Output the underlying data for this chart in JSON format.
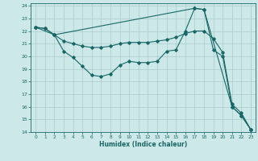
{
  "xlabel": "Humidex (Indice chaleur)",
  "bg_color": "#cce8e8",
  "grid_color": "#aacccc",
  "line_color": "#1a6666",
  "xlim": [
    -0.5,
    23.5
  ],
  "ylim": [
    14,
    24.2
  ],
  "yticks": [
    14,
    15,
    16,
    17,
    18,
    19,
    20,
    21,
    22,
    23,
    24
  ],
  "xticks": [
    0,
    1,
    2,
    3,
    4,
    5,
    6,
    7,
    8,
    9,
    10,
    11,
    12,
    13,
    14,
    15,
    16,
    17,
    18,
    19,
    20,
    21,
    22,
    23
  ],
  "line1_x": [
    0,
    1,
    2,
    3,
    4,
    5,
    6,
    7,
    8,
    9,
    10,
    11,
    12,
    13,
    14,
    15,
    16,
    17,
    18,
    19,
    20,
    21,
    22,
    23
  ],
  "line1_y": [
    22.3,
    22.2,
    21.7,
    20.4,
    19.9,
    19.2,
    18.5,
    18.4,
    18.6,
    19.3,
    19.6,
    19.5,
    19.5,
    19.6,
    20.4,
    20.5,
    22.0,
    23.8,
    23.7,
    20.5,
    20.0,
    16.0,
    15.3,
    14.2
  ],
  "line2_x": [
    0,
    2,
    3,
    4,
    5,
    6,
    7,
    8,
    9,
    10,
    11,
    12,
    13,
    14,
    15,
    16,
    17,
    18,
    19,
    20,
    21,
    22,
    23
  ],
  "line2_y": [
    22.3,
    21.7,
    21.2,
    21.0,
    20.8,
    20.7,
    20.7,
    20.8,
    21.0,
    21.1,
    21.1,
    21.1,
    21.2,
    21.3,
    21.5,
    21.8,
    22.0,
    22.0,
    21.4,
    20.3,
    16.2,
    15.5,
    14.2
  ],
  "line3_x": [
    0,
    1,
    2,
    17,
    18,
    21,
    22,
    23
  ],
  "line3_y": [
    22.3,
    22.2,
    21.7,
    23.8,
    23.7,
    16.0,
    15.3,
    14.2
  ]
}
